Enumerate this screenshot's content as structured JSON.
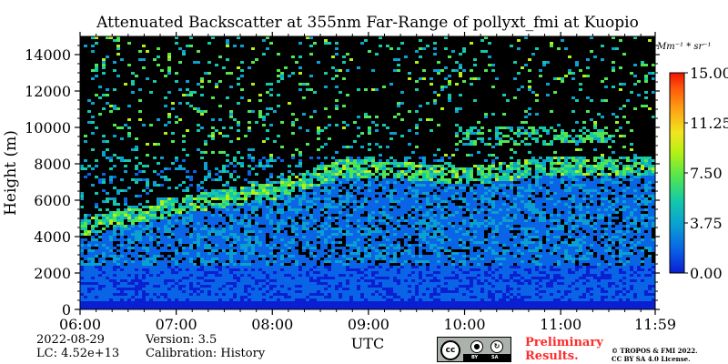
{
  "chart_data": {
    "type": "heatmap",
    "title": "Attenuated Backscatter at 355nm Far-Range of pollyxt_fmi at Kuopio",
    "xlabel": "UTC",
    "ylabel": "Height (m)",
    "x_ticks": [
      "06:00",
      "07:00",
      "08:00",
      "09:00",
      "10:00",
      "11:00",
      "11:59"
    ],
    "x_range_hours": [
      6.0,
      11.983
    ],
    "y_ticks": [
      0,
      2000,
      4000,
      6000,
      8000,
      10000,
      12000,
      14000
    ],
    "y_range": [
      0,
      15000
    ],
    "colorbar": {
      "unit": "Mm⁻¹ * sr⁻¹",
      "range": [
        0.0,
        15.0
      ],
      "ticks": [
        "0.00",
        "3.75",
        "7.50",
        "11.25",
        "15.00"
      ],
      "colors": [
        "#0a1ed2",
        "#0a64e6",
        "#0aa0d2",
        "#14c8aa",
        "#50e650",
        "#b4f014",
        "#f0e61e",
        "#ffa014",
        "#ff5a0a",
        "#f01405"
      ]
    },
    "layers": {
      "aerosol_layer_top_m": [
        [
          6.0,
          4800
        ],
        [
          7.0,
          6000
        ],
        [
          8.0,
          6800
        ],
        [
          8.7,
          8000
        ],
        [
          9.4,
          7900
        ],
        [
          10.0,
          7600
        ],
        [
          11.0,
          8200
        ],
        [
          11.98,
          8200
        ]
      ],
      "cirrus_m": [
        [
          10.4,
          9000,
          10200
        ],
        [
          11.1,
          9200,
          10000
        ]
      ],
      "noise_floor_above_m": 8500
    }
  },
  "footer": {
    "date": "2022-08-29",
    "lc": "LC: 4.52e+13",
    "version": "Version: 3.5",
    "calibration": "Calibration: History",
    "preliminary_line1": "Preliminary",
    "preliminary_line2": "Results.",
    "copyright_line1": "© TROPOS & FMI 2022.",
    "copyright_line2": "CC BY SA 4.0 License.",
    "license_badge": "cc-by-sa-badge",
    "license_by": "BY",
    "license_sa": "SA"
  }
}
